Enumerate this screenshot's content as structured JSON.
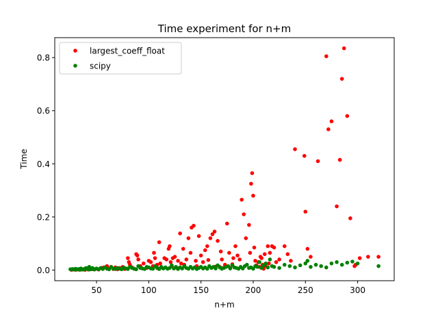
{
  "chart_data": {
    "type": "scatter",
    "title": "Time experiment for n+m",
    "xlabel": "n+m",
    "ylabel": "Time",
    "xlim": [
      10,
      335
    ],
    "ylim": [
      -0.04,
      0.875
    ],
    "xticks": [
      50,
      100,
      150,
      200,
      250,
      300
    ],
    "yticks": [
      0.0,
      0.2,
      0.4,
      0.6,
      0.8
    ],
    "ytick_labels": [
      "0.0",
      "0.2",
      "0.4",
      "0.6",
      "0.8"
    ],
    "grid": false,
    "legend_position": "upper-left",
    "series": [
      {
        "name": "largest_coeff_float",
        "color": "#ff0000",
        "x": [
          26,
          28,
          30,
          33,
          36,
          39,
          41,
          43,
          45,
          47,
          50,
          52,
          55,
          57,
          60,
          62,
          64,
          66,
          68,
          70,
          72,
          75,
          77,
          79,
          80,
          81,
          82,
          84,
          86,
          88,
          89,
          90,
          92,
          95,
          98,
          100,
          102,
          104,
          105,
          106,
          108,
          109,
          110,
          111,
          112,
          115,
          117,
          119,
          120,
          121,
          122,
          123,
          125,
          127,
          128,
          130,
          131,
          133,
          134,
          136,
          138,
          140,
          141,
          143,
          145,
          146,
          148,
          150,
          152,
          154,
          156,
          157,
          159,
          161,
          163,
          164,
          166,
          168,
          169,
          170,
          171,
          173,
          175,
          177,
          178,
          180,
          181,
          183,
          185,
          187,
          189,
          191,
          193,
          196,
          197,
          198,
          199,
          200,
          201,
          202,
          203,
          205,
          206,
          207,
          208,
          209,
          210,
          211,
          212,
          214,
          215,
          216,
          218,
          220,
          222,
          225,
          230,
          233,
          236,
          240,
          249,
          250,
          252,
          255,
          262,
          270,
          272,
          275,
          280,
          283,
          285,
          287,
          290,
          293,
          297,
          298,
          302,
          310,
          320
        ],
        "y": [
          0.001,
          0.002,
          0.001,
          0.003,
          0.002,
          0.001,
          0.004,
          0.002,
          0.006,
          0.003,
          0.005,
          0.002,
          0.008,
          0.01,
          0.015,
          0.006,
          0.012,
          0.004,
          0.01,
          0.003,
          0.008,
          0.012,
          0.004,
          0.006,
          0.045,
          0.03,
          0.02,
          0.01,
          0.005,
          0.06,
          0.055,
          0.04,
          0.015,
          0.025,
          0.008,
          0.035,
          0.03,
          0.015,
          0.065,
          0.045,
          0.02,
          0.006,
          0.105,
          0.025,
          0.01,
          0.045,
          0.04,
          0.08,
          0.09,
          0.03,
          0.015,
          0.045,
          0.05,
          0.008,
          0.035,
          0.138,
          0.025,
          0.08,
          0.02,
          0.04,
          0.12,
          0.065,
          0.16,
          0.167,
          0.035,
          0.015,
          0.128,
          0.055,
          0.03,
          0.075,
          0.09,
          0.038,
          0.12,
          0.135,
          0.145,
          0.013,
          0.11,
          0.012,
          0.07,
          0.04,
          0.008,
          0.02,
          0.175,
          0.065,
          0.008,
          0.022,
          0.045,
          0.09,
          0.055,
          0.04,
          0.265,
          0.21,
          0.12,
          0.17,
          0.065,
          0.325,
          0.365,
          0.28,
          0.085,
          0.035,
          0.018,
          0.03,
          0.012,
          0.05,
          0.045,
          0.02,
          0.005,
          0.06,
          0.015,
          0.09,
          0.025,
          0.065,
          0.09,
          0.085,
          0.03,
          0.04,
          0.09,
          0.06,
          0.035,
          0.455,
          0.43,
          0.22,
          0.08,
          0.05,
          0.41,
          0.805,
          0.53,
          0.56,
          0.24,
          0.415,
          0.72,
          0.835,
          0.58,
          0.195,
          0.015,
          0.02,
          0.045,
          0.05,
          0.05
        ]
      },
      {
        "name": "scipy",
        "color": "#008000",
        "x": [
          25,
          26,
          27,
          28,
          29,
          30,
          31,
          32,
          33,
          34,
          35,
          36,
          37,
          38,
          39,
          40,
          41,
          42,
          43,
          44,
          45,
          46,
          47,
          48,
          50,
          52,
          54,
          56,
          58,
          60,
          62,
          64,
          66,
          68,
          70,
          72,
          74,
          76,
          78,
          80,
          82,
          84,
          86,
          88,
          90,
          92,
          94,
          96,
          98,
          100,
          102,
          104,
          106,
          108,
          110,
          112,
          114,
          116,
          118,
          120,
          122,
          124,
          126,
          128,
          130,
          132,
          134,
          136,
          138,
          140,
          142,
          144,
          146,
          148,
          150,
          152,
          154,
          156,
          158,
          160,
          162,
          164,
          166,
          168,
          170,
          172,
          174,
          176,
          178,
          180,
          182,
          184,
          186,
          188,
          190,
          192,
          194,
          196,
          198,
          200,
          202,
          204,
          206,
          208,
          210,
          212,
          214,
          216,
          218,
          220,
          225,
          230,
          235,
          240,
          245,
          250,
          252,
          255,
          260,
          265,
          270,
          275,
          280,
          285,
          290,
          295,
          300,
          320
        ],
        "y": [
          0.003,
          0.002,
          0.004,
          0.003,
          0.002,
          0.005,
          0.003,
          0.002,
          0.004,
          0.001,
          0.006,
          0.003,
          0.002,
          0.004,
          0.003,
          0.008,
          0.005,
          0.002,
          0.012,
          0.004,
          0.003,
          0.008,
          0.005,
          0.002,
          0.006,
          0.003,
          0.008,
          0.004,
          0.01,
          0.005,
          0.003,
          0.012,
          0.006,
          0.004,
          0.008,
          0.005,
          0.003,
          0.01,
          0.006,
          0.004,
          0.012,
          0.008,
          0.005,
          0.003,
          0.015,
          0.008,
          0.006,
          0.004,
          0.012,
          0.01,
          0.006,
          0.005,
          0.015,
          0.008,
          0.004,
          0.012,
          0.006,
          0.01,
          0.005,
          0.008,
          0.018,
          0.006,
          0.012,
          0.004,
          0.01,
          0.006,
          0.015,
          0.008,
          0.005,
          0.012,
          0.006,
          0.01,
          0.004,
          0.008,
          0.012,
          0.006,
          0.01,
          0.005,
          0.015,
          0.008,
          0.012,
          0.006,
          0.018,
          0.01,
          0.005,
          0.008,
          0.012,
          0.015,
          0.006,
          0.018,
          0.01,
          0.008,
          0.005,
          0.012,
          0.006,
          0.015,
          0.02,
          0.008,
          0.01,
          0.005,
          0.015,
          0.012,
          0.03,
          0.008,
          0.018,
          0.025,
          0.01,
          0.04,
          0.015,
          0.012,
          0.008,
          0.02,
          0.015,
          0.01,
          0.018,
          0.025,
          0.035,
          0.012,
          0.02,
          0.015,
          0.01,
          0.025,
          0.03,
          0.02,
          0.028,
          0.032,
          0.025,
          0.015
        ]
      }
    ]
  }
}
